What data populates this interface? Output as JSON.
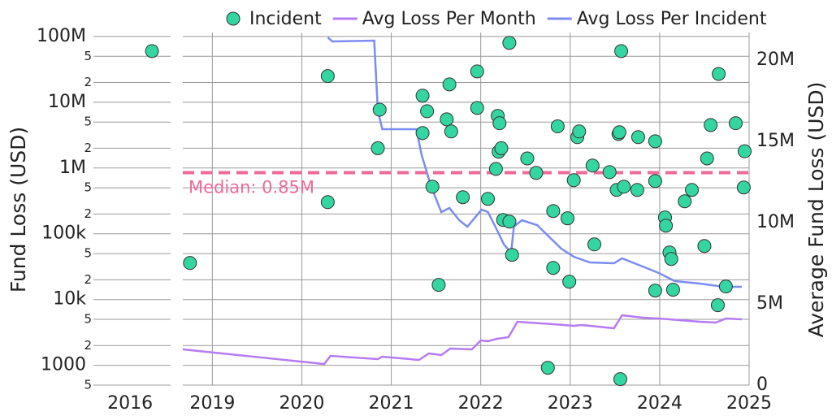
{
  "chart_data": {
    "type": "scatter",
    "ylabel": "Fund Loss (USD)",
    "y2label": "Average Fund Loss (USD)",
    "log_y": true,
    "grid": true,
    "legend": "top",
    "ylim": [
      500,
      115000000
    ],
    "yticks": [
      {
        "value": 100000000,
        "label": "100M"
      },
      {
        "value": 50000000,
        "label": "5"
      },
      {
        "value": 20000000,
        "label": "2"
      },
      {
        "value": 10000000,
        "label": "10M"
      },
      {
        "value": 5000000,
        "label": "5"
      },
      {
        "value": 2000000,
        "label": "2"
      },
      {
        "value": 1000000,
        "label": "1M"
      },
      {
        "value": 500000,
        "label": "5"
      },
      {
        "value": 200000,
        "label": "2"
      },
      {
        "value": 100000,
        "label": "100k"
      },
      {
        "value": 50000,
        "label": "5"
      },
      {
        "value": 20000,
        "label": "2"
      },
      {
        "value": 10000,
        "label": "10k"
      },
      {
        "value": 5000,
        "label": "5"
      },
      {
        "value": 2000,
        "label": "2"
      },
      1000,
      {
        "value": 500,
        "label": "5"
      }
    ],
    "y2lim": [
      0,
      21700000
    ],
    "y2ticks": [
      0,
      {
        "value": 5000000,
        "label": "5M"
      },
      {
        "value": 10000000,
        "label": "10M"
      },
      {
        "value": 15000000,
        "label": "15M"
      },
      {
        "value": 20000000,
        "label": "20M"
      }
    ],
    "panels": [
      {
        "xlim": [
          2015.43,
          2016.63
        ],
        "xticks": [
          2016
        ],
        "xgrid": false
      },
      {
        "xlim": [
          2018.67,
          2025
        ],
        "xticks": [
          2019,
          2020,
          2021,
          2022,
          2023,
          2024,
          2025
        ],
        "xgrid": true
      }
    ],
    "median": {
      "value": 850000,
      "label": "Median: 0.85M",
      "color": "#f0699a"
    },
    "series": [
      {
        "name": "Incident",
        "type": "scatter",
        "color": "#33d6a0",
        "x": [
          2016.34,
          2018.75,
          2020.29,
          2020.29,
          2020.87,
          2020.85,
          2021.35,
          2021.4,
          2021.35,
          2021.46,
          2021.53,
          2021.65,
          2021.62,
          2021.67,
          2021.8,
          2021.96,
          2021.96,
          2022.08,
          2022.19,
          2022.21,
          2022.2,
          2022.23,
          2022.17,
          2022.25,
          2022.32,
          2022.35,
          2022.32,
          2022.52,
          2022.62,
          2022.75,
          2022.81,
          2022.81,
          2022.86,
          2022.97,
          2022.99,
          2023.04,
          2023.08,
          2023.1,
          2023.25,
          2023.27,
          2023.44,
          2023.52,
          2023.54,
          2023.55,
          2023.57,
          2023.6,
          2023.56,
          2023.75,
          2023.76,
          2023.95,
          2023.95,
          2023.95,
          2024.06,
          2024.07,
          2024.11,
          2024.13,
          2024.15,
          2024.28,
          2024.36,
          2024.5,
          2024.53,
          2024.57,
          2024.66,
          2024.65,
          2024.74,
          2024.85,
          2024.94,
          2024.95
        ],
        "values": [
          60000000,
          36000,
          25000000,
          303000,
          7700000,
          2000000,
          12600000,
          7300000,
          3400000,
          520000,
          16700,
          18700000,
          5500000,
          3600000,
          360000,
          29500000,
          8200000,
          340000,
          6200000,
          4800000,
          1770000,
          2000000,
          970000,
          162000,
          153000,
          47800,
          80000000,
          1400000,
          843000,
          920,
          222000,
          30300,
          4300000,
          172000,
          18700,
          653000,
          2950000,
          3600000,
          1090000,
          69000,
          867000,
          465000,
          3300000,
          3500000,
          60000000,
          520000,
          617,
          465000,
          2950000,
          2550000,
          13700,
          634000,
          177000,
          133000,
          52000,
          41400,
          14100,
          312000,
          465000,
          65300,
          1400000,
          4500000,
          27000000,
          8200,
          15800,
          4800000,
          506000,
          1800000
        ]
      },
      {
        "name": "Avg Loss Per Month",
        "type": "line",
        "axis": "y2",
        "color": "#b57bf5",
        "x": [
          2018.67,
          2020.25,
          2020.32,
          2020.85,
          2020.9,
          2021.31,
          2021.42,
          2021.56,
          2021.66,
          2021.9,
          2022.0,
          2022.08,
          2022.18,
          2022.31,
          2022.41,
          2022.81,
          2023.04,
          2023.13,
          2023.49,
          2023.58,
          2023.81,
          2023.99,
          2024.45,
          2024.63,
          2024.74,
          2024.92
        ],
        "values": [
          2200000,
          1300000,
          1800000,
          1600000,
          1750000,
          1550000,
          1950000,
          1850000,
          2250000,
          2200000,
          2750000,
          2700000,
          2850000,
          2950000,
          3900000,
          3750000,
          3650000,
          3700000,
          3500000,
          4300000,
          4150000,
          4100000,
          3900000,
          3850000,
          4100000,
          4050000
        ]
      },
      {
        "name": "Avg Loss Per Incident",
        "type": "line",
        "axis": "y2",
        "color": "#7b8cf2",
        "x": [
          2020.29,
          2020.34,
          2020.81,
          2020.85,
          2020.9,
          2021.28,
          2021.34,
          2021.45,
          2021.56,
          2021.65,
          2021.76,
          2021.85,
          2022.01,
          2022.08,
          2022.15,
          2022.26,
          2022.34,
          2022.37,
          2022.46,
          2022.63,
          2022.9,
          2023.04,
          2023.22,
          2023.49,
          2023.58,
          2023.81,
          2023.99,
          2024.17,
          2024.45,
          2024.72,
          2024.92
        ],
        "values": [
          21400000,
          21150000,
          21200000,
          16900000,
          15750000,
          15750000,
          14150000,
          12150000,
          10650000,
          10900000,
          10150000,
          9750000,
          10800000,
          10650000,
          9900000,
          8650000,
          8150000,
          9750000,
          10150000,
          9850000,
          8400000,
          7900000,
          7550000,
          7500000,
          7800000,
          7300000,
          6900000,
          6400000,
          6250000,
          6050000,
          6050000
        ]
      }
    ]
  }
}
